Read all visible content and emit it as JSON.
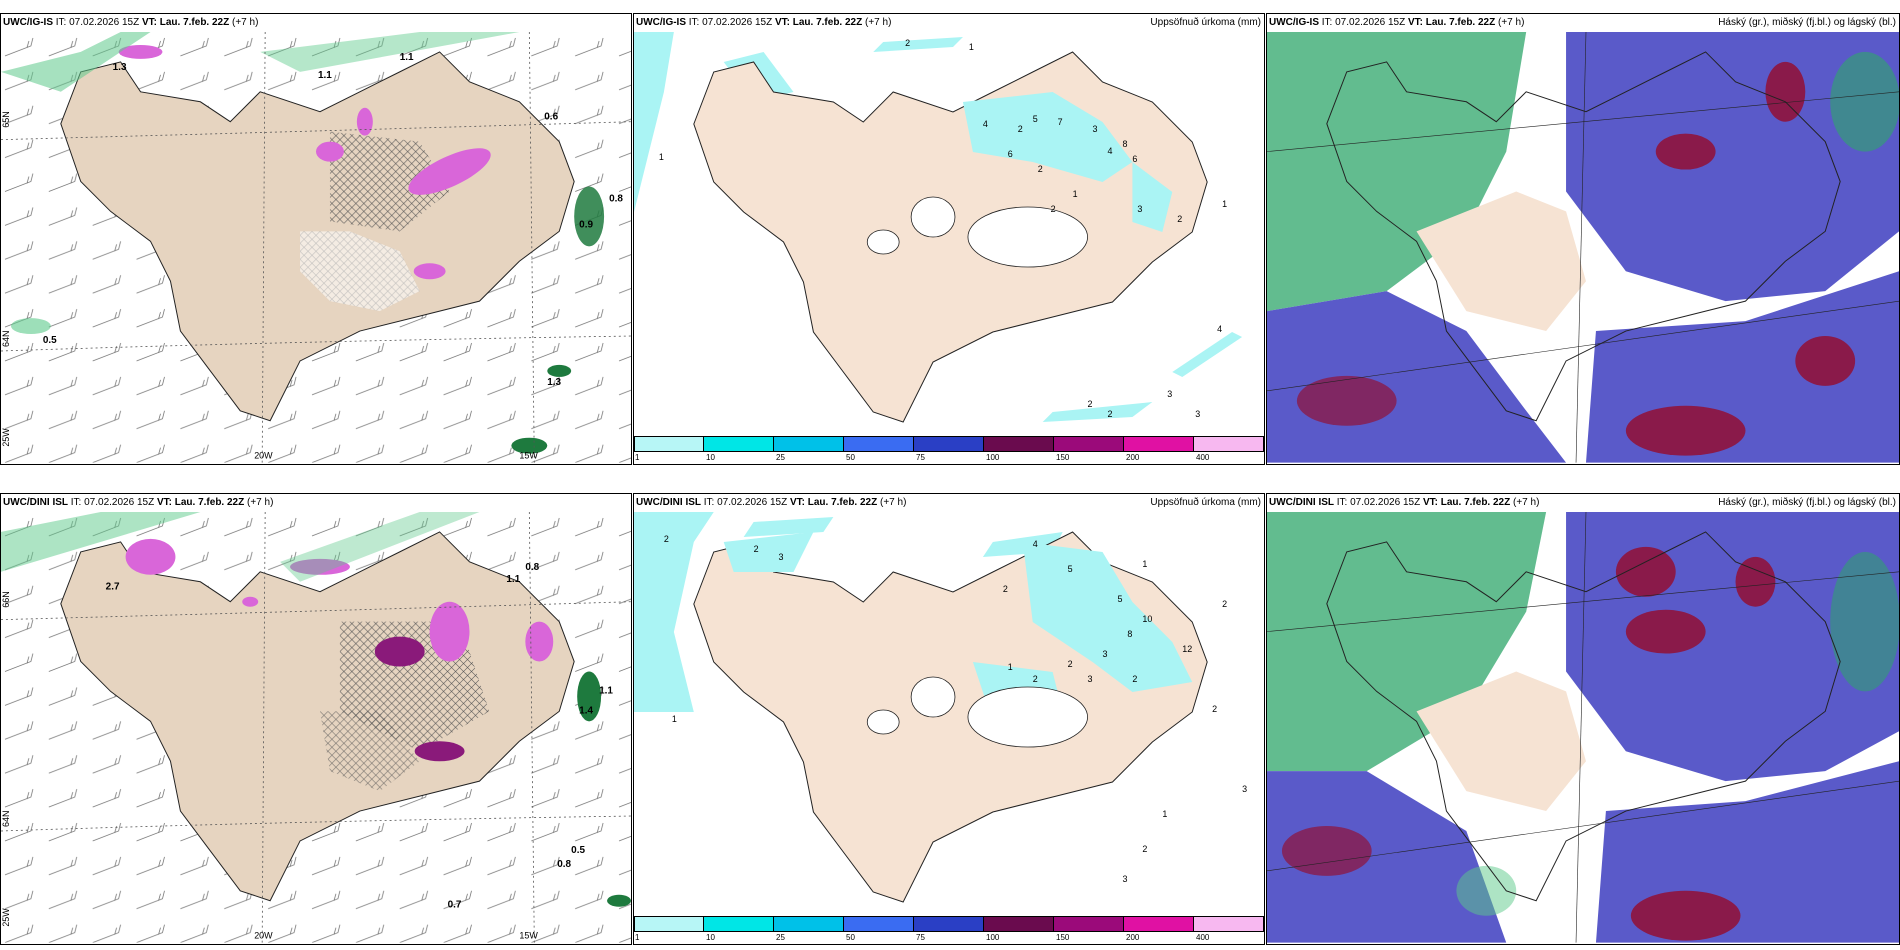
{
  "panels": {
    "ig_wind": {
      "model": "UWC/IG-IS",
      "it": "IT: 07.02.2026 15Z",
      "vt": "VT: Lau. 7.feb. 22Z",
      "lead": "(+7 h)",
      "title": "",
      "lat_labels": [
        "65N",
        "64N"
      ],
      "lon_labels": [
        "20W",
        "15W",
        "25W"
      ],
      "values": [
        "1.3",
        "1.1",
        "1.1",
        "0.6",
        "0.8",
        "0.5",
        "1.3",
        "0.9"
      ]
    },
    "ig_precip": {
      "model": "UWC/IG-IS",
      "it": "IT: 07.02.2026 15Z",
      "vt": "VT: Lau. 7.feb. 22Z",
      "lead": "(+7 h)",
      "title": "Uppsöfnuð úrkoma (mm)",
      "values": [
        "2",
        "1",
        "1",
        "4",
        "5",
        "7",
        "2",
        "6",
        "3",
        "4",
        "6",
        "8",
        "2",
        "1",
        "3",
        "2",
        "2",
        "4",
        "3",
        "2",
        "2",
        "3",
        "1"
      ]
    },
    "ig_cloud": {
      "model": "UWC/IG-IS",
      "it": "IT: 07.02.2026 15Z",
      "vt": "VT: Lau. 7.feb. 22Z",
      "lead": "(+7 h)",
      "title": "Háský (gr.), miðský (fj.bl.) og lágský (bl.)"
    },
    "dini_wind": {
      "model": "UWC/DINI ISL",
      "it": "IT: 07.02.2026 15Z",
      "vt": "VT: Lau. 7.feb. 22Z",
      "lead": "(+7 h)",
      "title": "",
      "lat_labels": [
        "66N",
        "64N"
      ],
      "lon_labels": [
        "20W",
        "15W",
        "25W"
      ],
      "values": [
        "0.8",
        "1.1",
        "1.4",
        "1.1",
        "0.5",
        "0.8",
        "0.7",
        "2.7"
      ]
    },
    "dini_precip": {
      "model": "UWC/DINI ISL",
      "it": "IT: 07.02.2026 15Z",
      "vt": "VT: Lau. 7.feb. 22Z",
      "lead": "(+7 h)",
      "title": "Uppsöfnuð úrkoma (mm)",
      "values": [
        "2",
        "2",
        "3",
        "4",
        "5",
        "1",
        "2",
        "5",
        "10",
        "8",
        "12",
        "2",
        "3",
        "2",
        "1",
        "2",
        "3",
        "2",
        "1",
        "2",
        "3",
        "1",
        "2",
        "3"
      ]
    },
    "dini_cloud": {
      "model": "UWC/DINI ISL",
      "it": "IT: 07.02.2026 15Z",
      "vt": "VT: Lau. 7.feb. 22Z",
      "lead": "(+7 h)",
      "title": "Háský (gr.), miðský (fj.bl.) og lágský (bl.)"
    }
  },
  "colorbar": {
    "ticks": [
      "1",
      "10",
      "25",
      "50",
      "75",
      "100",
      "150",
      "200",
      "400"
    ],
    "colors": [
      "#b7f6f6",
      "#00e6e6",
      "#00c1e8",
      "#3a6cf2",
      "#2a3fc5",
      "#6a0b4e",
      "#9b0a7a",
      "#e011a3",
      "#f7b8f0"
    ]
  },
  "colors": {
    "land": "#f6e3d3",
    "land_wind": "#e6d4c0",
    "precip_light": "#aaf4f4",
    "snow": "#d966d9",
    "rain_green": "#5cc98a",
    "cloud_high": "#2ea66a",
    "cloud_mid": "#5a5ac9",
    "cloud_low": "#8a1a4a"
  }
}
